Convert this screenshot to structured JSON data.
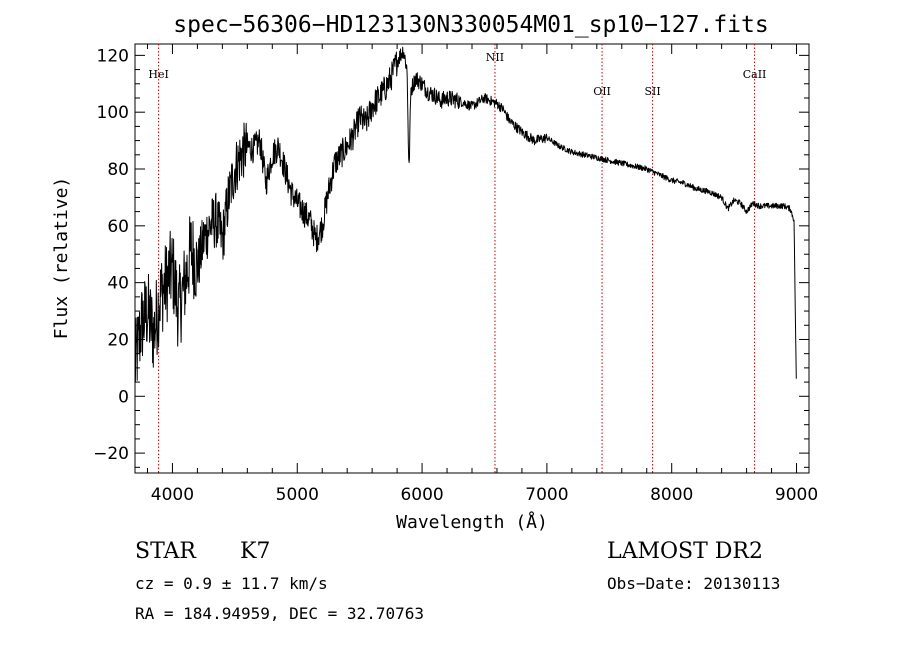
{
  "chart_data": {
    "type": "line",
    "title": "spec−56306−HD123130N330054M01_sp10−127.fits",
    "xlabel": "Wavelength (Å)",
    "ylabel": "Flux (relative)",
    "xlim": [
      3700,
      9100
    ],
    "ylim": [
      -27,
      124
    ],
    "xticks": [
      4000,
      5000,
      6000,
      7000,
      8000,
      9000
    ],
    "xtick_labels": [
      "4000",
      "5000",
      "6000",
      "7000",
      "8000",
      "9000"
    ],
    "yticks": [
      -20,
      0,
      20,
      40,
      60,
      80,
      100,
      120
    ],
    "ytick_labels": [
      "−20",
      "0",
      "20",
      "40",
      "60",
      "80",
      "100",
      "120"
    ],
    "grid": false,
    "series": [
      {
        "name": "spectrum",
        "x": [
          3700,
          3750,
          3800,
          3850,
          3900,
          3950,
          4000,
          4050,
          4100,
          4150,
          4200,
          4250,
          4300,
          4350,
          4400,
          4450,
          4500,
          4550,
          4600,
          4650,
          4700,
          4750,
          4800,
          4850,
          4900,
          4950,
          5000,
          5050,
          5100,
          5150,
          5200,
          5250,
          5300,
          5350,
          5400,
          5450,
          5500,
          5550,
          5600,
          5650,
          5700,
          5750,
          5800,
          5850,
          5880,
          5895,
          5910,
          5950,
          6000,
          6050,
          6100,
          6150,
          6200,
          6300,
          6400,
          6500,
          6600,
          6650,
          6700,
          6800,
          6900,
          7000,
          7100,
          7200,
          7300,
          7400,
          7500,
          7600,
          7700,
          7800,
          7900,
          8000,
          8100,
          8200,
          8300,
          8400,
          8450,
          8500,
          8550,
          8600,
          8650,
          8700,
          8800,
          8900,
          8950,
          8980,
          9000
        ],
        "y": [
          10,
          25,
          30,
          22,
          35,
          40,
          45,
          30,
          40,
          52,
          45,
          55,
          60,
          62,
          55,
          70,
          80,
          85,
          88,
          87,
          90,
          75,
          85,
          88,
          80,
          72,
          68,
          65,
          62,
          55,
          60,
          72,
          82,
          85,
          88,
          92,
          98,
          96,
          102,
          105,
          108,
          112,
          118,
          122,
          115,
          78,
          108,
          112,
          110,
          107,
          106,
          104,
          105,
          104,
          102,
          105,
          103,
          101,
          97,
          93,
          90,
          91,
          88,
          86,
          85,
          84,
          83,
          82,
          81,
          80,
          78,
          76,
          75,
          73,
          72,
          70,
          66,
          69,
          68,
          65,
          68,
          67,
          67,
          67,
          66,
          62,
          0
        ]
      }
    ],
    "lines": [
      {
        "label": "HeI",
        "x": 3889
      },
      {
        "label": "NII",
        "x": 6584
      },
      {
        "label": "OII",
        "x": 7442
      },
      {
        "label": "SII",
        "x": 7847
      },
      {
        "label": "CaII",
        "x": 8664
      }
    ]
  },
  "info": {
    "object_type": "STAR",
    "subclass": "K7",
    "survey": "LAMOST DR2",
    "cz": "cz = 0.9 ± 11.7 km/s",
    "obs_date": "Obs−Date: 20130113",
    "coords": "RA = 184.94959, DEC =  32.70763"
  }
}
